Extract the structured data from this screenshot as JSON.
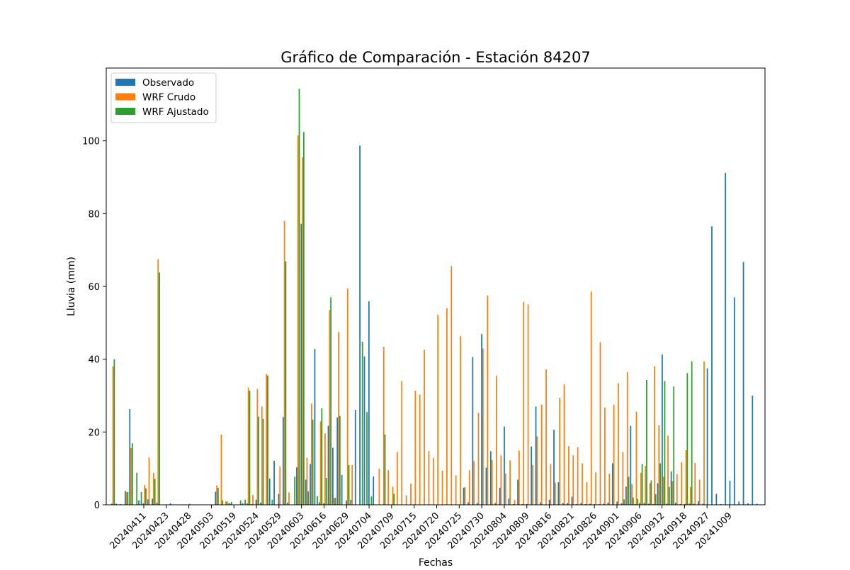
{
  "chart_data": {
    "type": "bar",
    "title": "Gráfico de Comparación - Estación 84207",
    "xlabel": "Fechas",
    "ylabel": "Lluvia (mm)",
    "ylim": [
      0,
      120
    ],
    "yticks": [
      0,
      20,
      40,
      60,
      80,
      100
    ],
    "xticks": [
      "20240411",
      "20240423",
      "20240428",
      "20240503",
      "20240519",
      "20240524",
      "20240529",
      "20240603",
      "20240616",
      "20240629",
      "20240704",
      "20240709",
      "20240715",
      "20240720",
      "20240725",
      "20240730",
      "20240804",
      "20240809",
      "20240816",
      "20240821",
      "20240826",
      "20240901",
      "20240906",
      "20240912",
      "20240918",
      "20240927",
      "20241009"
    ],
    "legend_position": "upper-left",
    "grid": false,
    "series": [
      {
        "name": "Observado",
        "color": "#1f77b4",
        "values": [
          0.3,
          0.3,
          0.2,
          3.8,
          26.3,
          0.1,
          1.2,
          0.4,
          1.5,
          1.7,
          0.6,
          0,
          0,
          0.4,
          0,
          0,
          0,
          0,
          0,
          0,
          0,
          0,
          0,
          3.6,
          0.1,
          0,
          0.5,
          0,
          0,
          0.4,
          0.4,
          0.2,
          1.4,
          0.6,
          0,
          7.2,
          12.1,
          3.0,
          24.1,
          0.6,
          0,
          10.3,
          77.2,
          6.9,
          11.2,
          42.8,
          0.7,
          0.4,
          21.7,
          15.7,
          24.0,
          8.2,
          1.2,
          1.4,
          26.1,
          98.7,
          40.8,
          55.9,
          7.8,
          0,
          0,
          0,
          0,
          0,
          0,
          0,
          0,
          0,
          0,
          0,
          0,
          0,
          0,
          0,
          0,
          0,
          0,
          0,
          4.7,
          0.7,
          40.6,
          0.5,
          46.9,
          10.2,
          14.7,
          0.5,
          4.7,
          21.5,
          1.7,
          0.2,
          6.9,
          0.2,
          0.2,
          16.0,
          27.0,
          0.7,
          0,
          1.4,
          20.6,
          6.2,
          0.5,
          0.5,
          2.2,
          0.2,
          0.5,
          0.2,
          0.3,
          0.2,
          0.2,
          0.3,
          0.6,
          11.4,
          0.9,
          0.4,
          5.0,
          21.7,
          0.2,
          0.5,
          0.5,
          0.3,
          0.2,
          5.9,
          41.3,
          0.3,
          9.2,
          0.6,
          0.2,
          0.2,
          0.3,
          0.3,
          1.0,
          0.3,
          37.5,
          76.5,
          3.0,
          0.2,
          91.2,
          6.6,
          57.0,
          0.9,
          66.7,
          0.4,
          30.0,
          0.3
        ]
      },
      {
        "name": "WRF Crudo",
        "color": "#ff7f0e",
        "values": [
          38.0,
          0,
          0,
          3.5,
          15.6,
          0,
          0,
          5.4,
          13.0,
          8.8,
          67.5,
          0,
          0,
          0,
          0,
          0,
          0,
          0.3,
          0,
          0,
          0,
          0,
          0,
          5.3,
          19.3,
          0.9,
          0.3,
          0,
          0.1,
          0,
          32.2,
          2.7,
          31.8,
          27.0,
          35.9,
          0,
          0,
          10.5,
          78.0,
          3.4,
          0,
          101.5,
          95.5,
          12.9,
          27.8,
          0,
          22.9,
          19.6,
          53.5,
          1.9,
          47.5,
          0,
          59.4,
          10.9,
          0,
          0,
          0,
          0,
          0,
          9.9,
          43.4,
          9.5,
          5.0,
          14.5,
          34.0,
          2.6,
          5.8,
          31.3,
          30.3,
          42.6,
          14.8,
          12.9,
          52.2,
          9.4,
          54.0,
          65.6,
          8.1,
          46.3,
          4.9,
          9.5,
          12.0,
          25.3,
          43.0,
          57.5,
          12.3,
          35.4,
          13.6,
          8.6,
          12.2,
          1.3,
          14.9,
          55.8,
          55.1,
          11.0,
          18.8,
          27.5,
          37.2,
          11.2,
          6.1,
          29.4,
          33.1,
          16.1,
          13.6,
          15.8,
          11.4,
          6.2,
          58.6,
          8.9,
          44.7,
          26.7,
          8.5,
          27.5,
          33.4,
          14.5,
          36.5,
          5.7,
          25.6,
          8.8,
          10.7,
          5.9,
          38.1,
          21.8,
          7.7,
          19.0,
          6.5,
          8.4,
          11.7,
          15.0,
          4.9,
          11.5,
          6.9,
          39.4
        ]
      },
      {
        "name": "WRF Ajustado",
        "color": "#2ca02c",
        "values": [
          40.0,
          0,
          0,
          3.5,
          16.9,
          8.8,
          3.5,
          4.5,
          0,
          7.1,
          63.8,
          0,
          0,
          0,
          0,
          0,
          0,
          0,
          0,
          0,
          0,
          0,
          0,
          4.7,
          1.2,
          0.9,
          0.8,
          0,
          1.2,
          1.4,
          31.3,
          0,
          24.2,
          23.6,
          35.5,
          1.4,
          0,
          0,
          66.9,
          0,
          7.7,
          114.3,
          102.4,
          3.7,
          23.4,
          2.4,
          26.5,
          7.4,
          57.0,
          1.9,
          24.4,
          0,
          10.9,
          0,
          0,
          44.8,
          25.5,
          2.3,
          0,
          0,
          19.3,
          0,
          3.0,
          0,
          0,
          0,
          0,
          0,
          0,
          0,
          0,
          0,
          0,
          0,
          0,
          0,
          0,
          0,
          0,
          0,
          0,
          0,
          0,
          0,
          0,
          0,
          0,
          0,
          0,
          0,
          0,
          0,
          0,
          0,
          0,
          0,
          0,
          0,
          0,
          0,
          0,
          0,
          0,
          0,
          0,
          0,
          0,
          0,
          0,
          0,
          0,
          0,
          0,
          1.5,
          7.7,
          2.0,
          1.6,
          11.2,
          34.3,
          6.7,
          2.9,
          11.4,
          34.0,
          4.9,
          32.5,
          0,
          0,
          36.2,
          39.4,
          0,
          0,
          0,
          0
        ]
      }
    ]
  }
}
